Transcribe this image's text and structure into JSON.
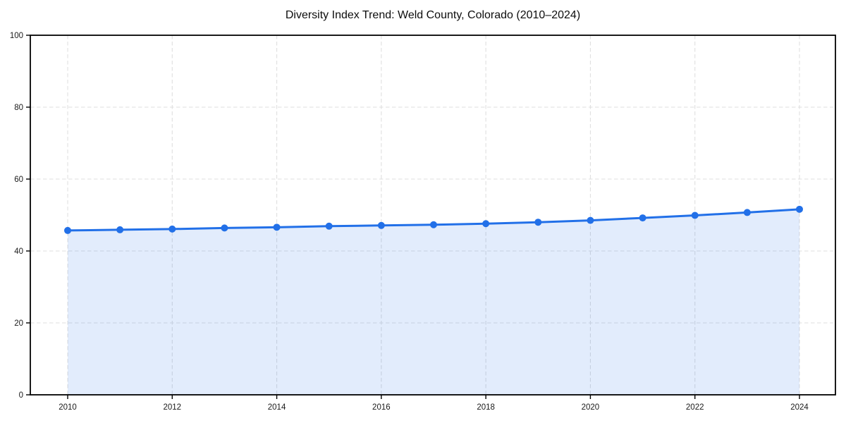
{
  "chart_data": {
    "type": "area",
    "title": "Diversity Index Trend: Weld County, Colorado (2010–2024)",
    "xlabel": "",
    "ylabel": "",
    "x": [
      2010,
      2011,
      2012,
      2013,
      2014,
      2015,
      2016,
      2017,
      2018,
      2019,
      2020,
      2021,
      2022,
      2023,
      2024
    ],
    "series": [
      {
        "name": "Diversity Index",
        "values": [
          45.7,
          45.9,
          46.1,
          46.4,
          46.6,
          46.9,
          47.1,
          47.3,
          47.6,
          48.0,
          48.5,
          49.2,
          49.9,
          50.7,
          51.6
        ]
      }
    ],
    "xlim": [
      2009.3,
      2024.7
    ],
    "ylim": [
      0,
      100
    ],
    "xticks": [
      2010,
      2012,
      2014,
      2016,
      2018,
      2020,
      2022,
      2024
    ],
    "yticks": [
      0,
      20,
      40,
      60,
      80,
      100
    ],
    "grid": true,
    "grid_style": "dashed",
    "legend": false,
    "marker": "circle",
    "colors": {
      "line": "#2270e8",
      "marker": "#2270e8",
      "fill": "#2270e8",
      "fill_opacity": 0.13,
      "grid": "#dfdfdf",
      "frame": "#000000",
      "tick_text": "#1a1a1a",
      "background": "#ffffff"
    }
  }
}
